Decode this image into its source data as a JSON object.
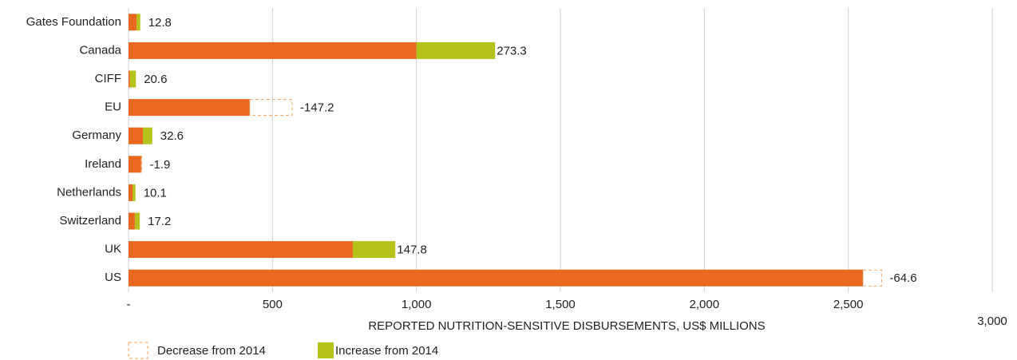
{
  "chart_data": {
    "type": "stacked-bar-horizontal",
    "x_label": "REPORTED NUTRITION-SENSITIVE DISBURSEMENTS, US$ MILLIONS",
    "categories": [
      "Gates Foundation",
      "Canada",
      "CIFF",
      "EU",
      "Germany",
      "Ireland",
      "Netherlands",
      "Switzerland",
      "UK",
      "US"
    ],
    "series": [
      {
        "color": "#e8681f",
        "values": [
          28,
          1000,
          5,
          421,
          50,
          44,
          14,
          22,
          779,
          2551
        ]
      },
      {
        "name": "Decrease from 2014",
        "color": "#f4a460",
        "style": "dashed",
        "values": [
          null,
          null,
          null,
          -147.2,
          null,
          -1.9,
          null,
          null,
          null,
          -64.6
        ]
      },
      {
        "name": "Increase from 2014",
        "color": "#b5c21b",
        "values": [
          12.8,
          273.3,
          20.6,
          null,
          32.6,
          null,
          10.1,
          17.2,
          147.8,
          null
        ]
      }
    ],
    "xlim": [
      0,
      3000
    ],
    "xticks": [
      {
        "value": 0,
        "label": "-"
      },
      500,
      {
        "value": 1000,
        "label": "1,000"
      },
      {
        "value": 1500,
        "label": "1,500"
      },
      {
        "value": 2000,
        "label": "2,000"
      },
      {
        "value": 2500,
        "label": "2,500"
      },
      {
        "value": 3000,
        "label": "3,000"
      }
    ],
    "grid": true
  }
}
